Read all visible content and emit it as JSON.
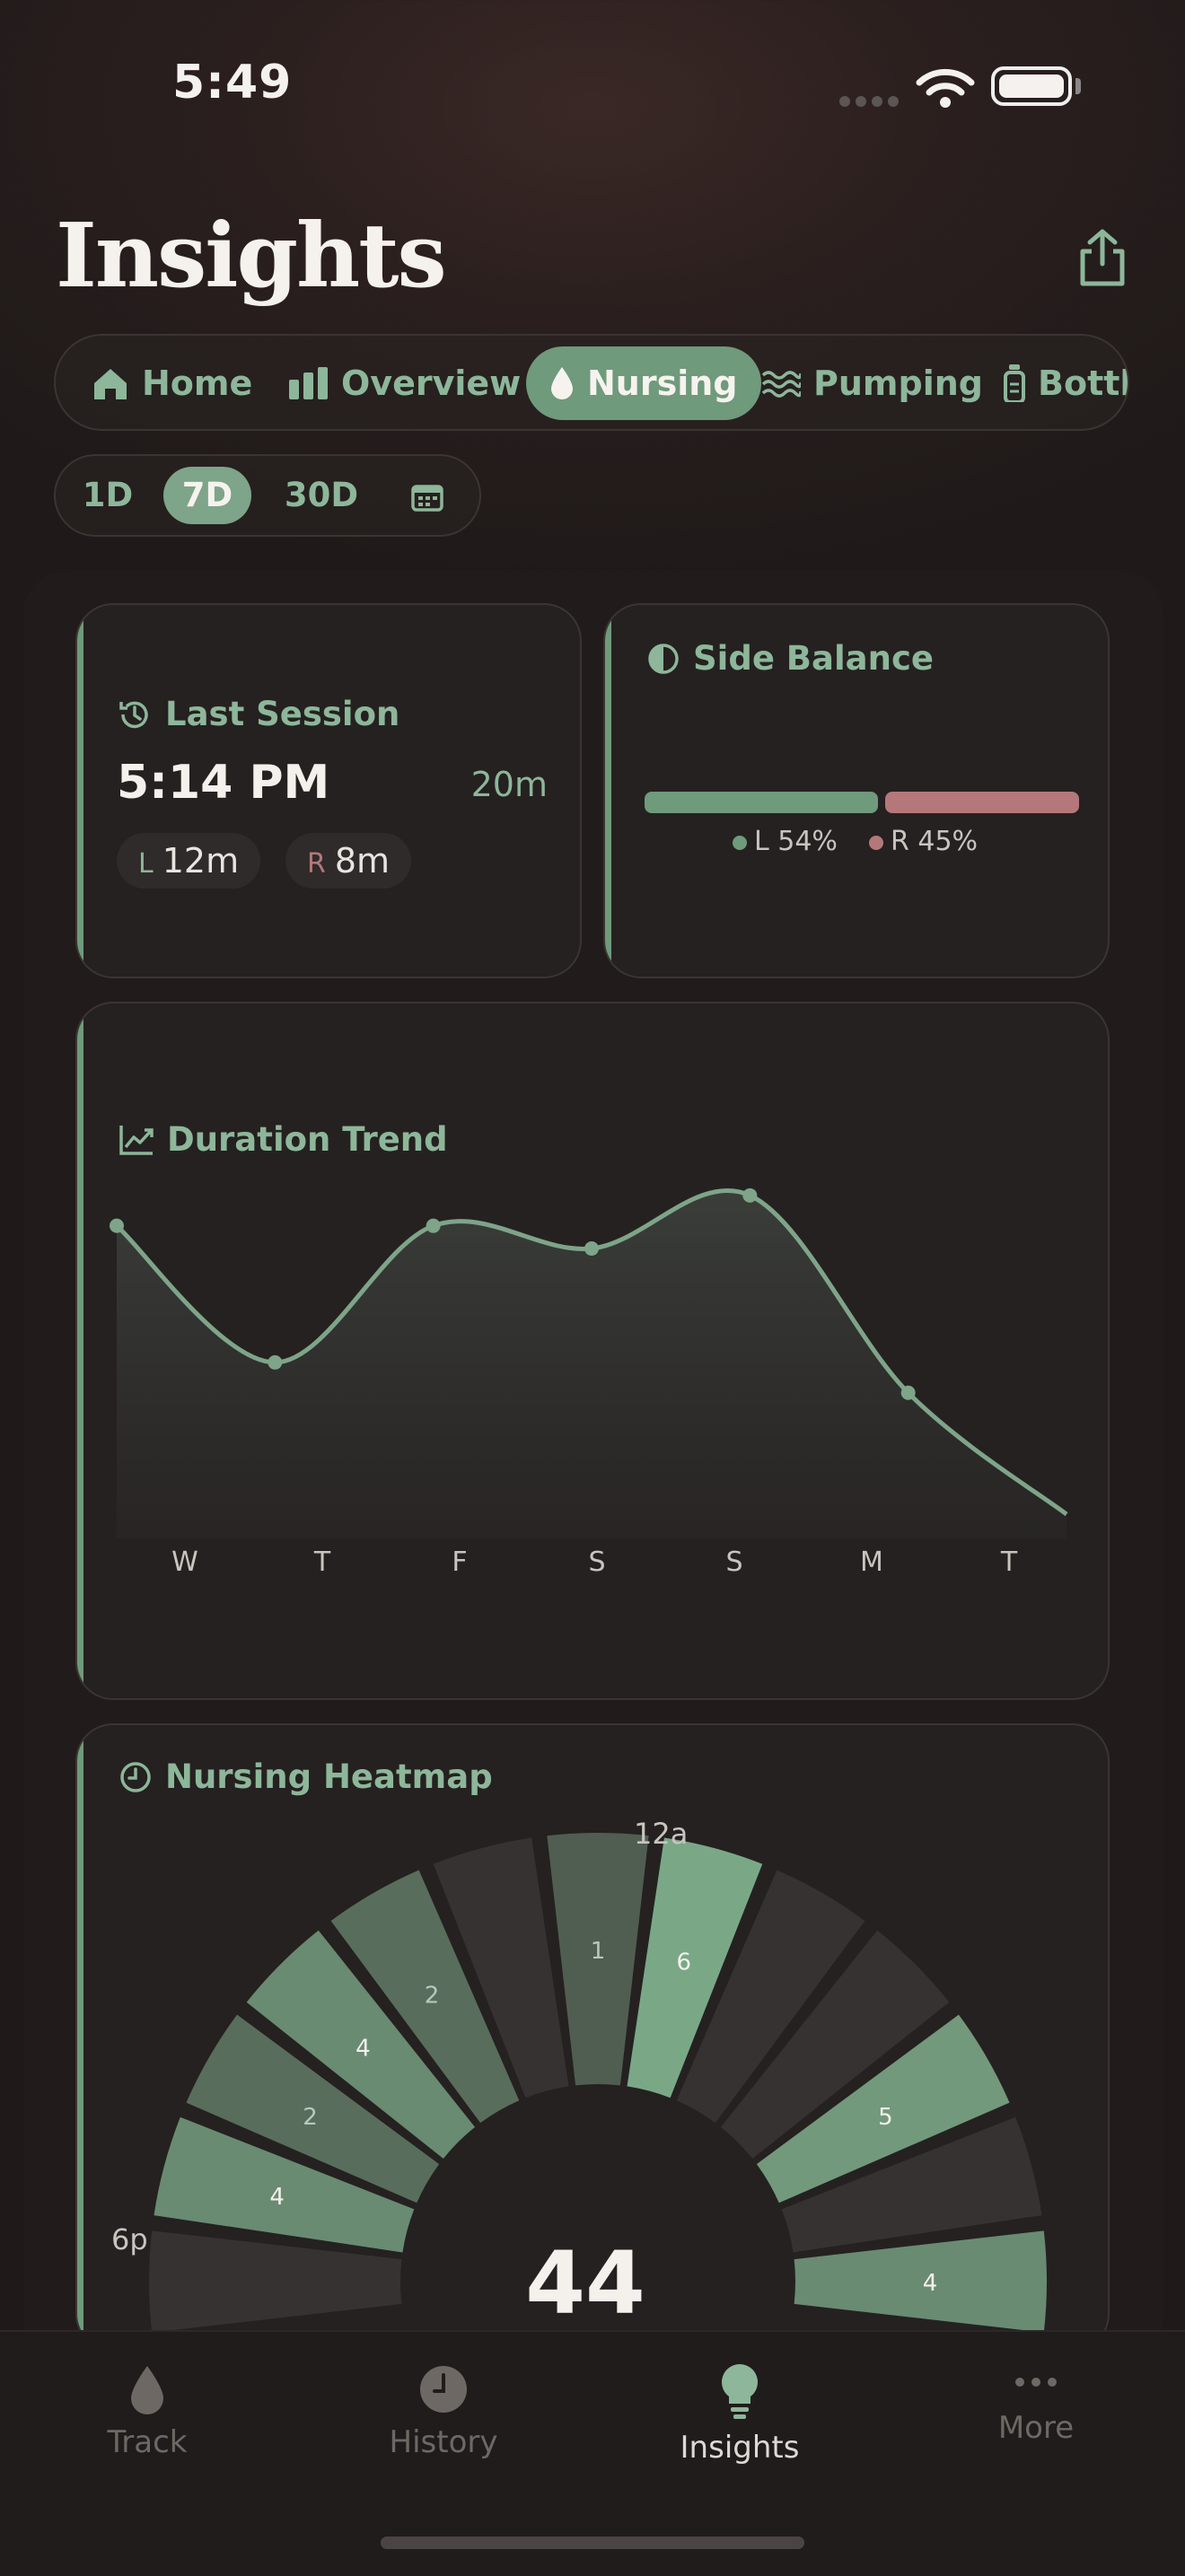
{
  "status_bar": {
    "time": "5:49"
  },
  "page_title": "Insights",
  "tabs": [
    {
      "label": "Home",
      "icon": "home-icon"
    },
    {
      "label": "Overview",
      "icon": "bars-icon"
    },
    {
      "label": "Nursing",
      "icon": "drop-icon",
      "active": true
    },
    {
      "label": "Pumping",
      "icon": "waves-icon"
    },
    {
      "label": "Bottle",
      "icon": "bottle-icon"
    }
  ],
  "ranges": [
    {
      "label": "1D"
    },
    {
      "label": "7D",
      "active": true
    },
    {
      "label": "30D"
    }
  ],
  "last_session": {
    "title": "Last Session",
    "time": "5:14 PM",
    "duration": "20m",
    "left_label": "L",
    "left_value": "12m",
    "right_label": "R",
    "right_value": "8m"
  },
  "side_balance": {
    "title": "Side Balance",
    "left_legend": "L 54%",
    "right_legend": "R 45%",
    "left_share": 54,
    "right_share": 45
  },
  "duration_trend": {
    "title": "Duration Trend",
    "chart_data": {
      "type": "area",
      "categories": [
        "W",
        "T",
        "F",
        "S",
        "S",
        "M",
        "T"
      ],
      "values": [
        20,
        11,
        20,
        18.5,
        22,
        9,
        1
      ],
      "ylim": [
        0,
        24
      ],
      "grid": false
    }
  },
  "heatmap": {
    "title": "Nursing Heatmap",
    "label_top": "12a",
    "label_left": "6p",
    "total": "44",
    "chart_data": {
      "type": "heatmap",
      "segments": [
        {
          "hour": 0,
          "value": 1
        },
        {
          "hour": 1,
          "value": 6
        },
        {
          "hour": 2,
          "value": 0
        },
        {
          "hour": 3,
          "value": 0
        },
        {
          "hour": 4,
          "value": 5
        },
        {
          "hour": 5,
          "value": 0
        },
        {
          "hour": 6,
          "value": 4
        },
        {
          "hour": 18,
          "value": 0
        },
        {
          "hour": 19,
          "value": 4
        },
        {
          "hour": 20,
          "value": 2
        },
        {
          "hour": 21,
          "value": 4
        },
        {
          "hour": 22,
          "value": 2
        },
        {
          "hour": 23,
          "value": 0
        }
      ]
    }
  },
  "nav": [
    {
      "label": "Track",
      "icon": "drop-icon"
    },
    {
      "label": "History",
      "icon": "clock-icon"
    },
    {
      "label": "Insights",
      "icon": "bulb-icon",
      "active": true
    },
    {
      "label": "More",
      "icon": "more-icon"
    }
  ],
  "colors": {
    "accent": "#6f9a7b",
    "right_side": "#b4787a",
    "background": "#1f1a19"
  }
}
